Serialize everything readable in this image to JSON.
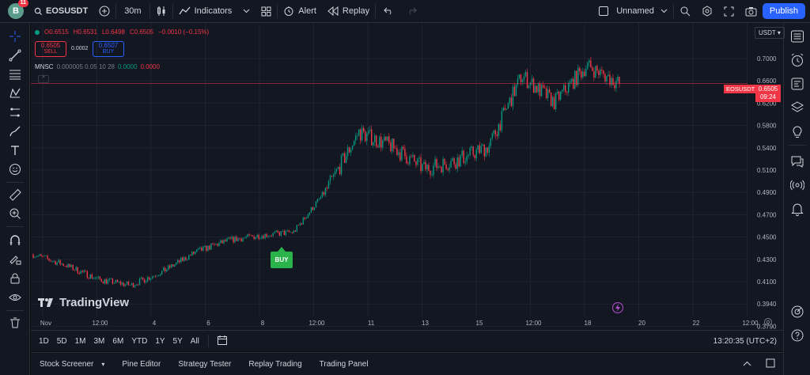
{
  "topbar": {
    "avatar_letter": "B",
    "avatar_badge": "11",
    "symbol": "EOSUSDT",
    "interval": "30m",
    "indicators_label": "Indicators",
    "alert_label": "Alert",
    "replay_label": "Replay",
    "layout_name": "Unnamed",
    "publish_label": "Publish"
  },
  "legend": {
    "open": "O0.6515",
    "high": "H0.6531",
    "low": "L0.6498",
    "close": "C0.6505",
    "change": "−0.0010 (−0.15%)"
  },
  "trade": {
    "sell_price": "0.6505",
    "sell_label": "SELL",
    "spread": "0.0002",
    "buy_price": "0.6507",
    "buy_label": "BUY"
  },
  "indicator": {
    "name": "MNSC",
    "params": "0.000005 0.05 10 28",
    "val1": "0.0000",
    "val2": "0.0000"
  },
  "price_axis": {
    "pair_tag": "USDT",
    "ticks": [
      "0.7000",
      "0.6600",
      "0.6200",
      "0.5800",
      "0.5400",
      "0.5100",
      "0.4900",
      "0.4700",
      "0.4500",
      "0.4300",
      "0.4100",
      "0.3940",
      "0.3790"
    ],
    "current_label": "EOSUSDT",
    "current_price": "0.6505",
    "countdown": "09:24"
  },
  "time_axis": {
    "ticks": [
      "Nov",
      "12:00",
      "4",
      "6",
      "8",
      "12:00",
      "11",
      "13",
      "15",
      "12:00",
      "18",
      "20",
      "22",
      "12:00"
    ]
  },
  "chart": {
    "buy_marker": "BUY",
    "logo_text": "TradingView",
    "up_color": "#089981",
    "down_color": "#f23645"
  },
  "bottom": {
    "ranges": [
      "1D",
      "5D",
      "1M",
      "3M",
      "6M",
      "YTD",
      "1Y",
      "5Y",
      "All"
    ],
    "clock": "13:20:35 (UTC+2)",
    "panels": [
      "Stock Screener",
      "Pine Editor",
      "Strategy Tester",
      "Replay Trading",
      "Trading Panel"
    ]
  },
  "chart_data": {
    "type": "candlestick",
    "symbol": "EOSUSDT",
    "interval": "30m",
    "x": [
      "Nov 1",
      "Nov 2",
      "Nov 3",
      "Nov 4",
      "Nov 5",
      "Nov 6",
      "Nov 7",
      "Nov 8",
      "Nov 9",
      "Nov 10",
      "Nov 11",
      "Nov 12",
      "Nov 13",
      "Nov 14",
      "Nov 15",
      "Nov 16",
      "Nov 17",
      "Nov 18",
      "Nov 19"
    ],
    "close_trend": [
      0.445,
      0.432,
      0.415,
      0.408,
      0.425,
      0.448,
      0.462,
      0.468,
      0.472,
      0.522,
      0.592,
      0.575,
      0.548,
      0.558,
      0.575,
      0.66,
      0.628,
      0.672,
      0.6505
    ],
    "ylim": [
      0.379,
      0.71
    ],
    "last_price": 0.6505
  }
}
